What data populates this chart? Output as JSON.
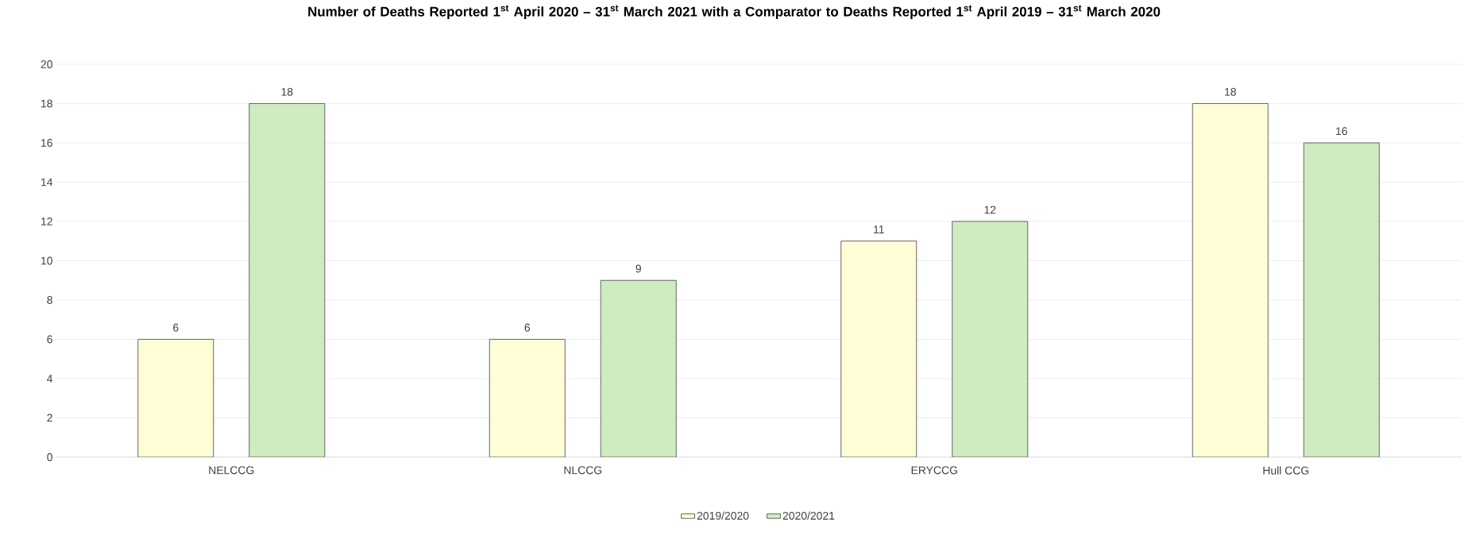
{
  "chart_data": {
    "type": "bar",
    "title": "Number of Deaths Reported 1$^{st}$ April 2020 – 31$^{st}$ March 2021 with a Comparator to Deaths Reported 1$^{st}$ April 2019 – 31$^{st}$ March 2020",
    "categories": [
      "NELCCG",
      "NLCCG",
      "ERYCCG",
      "Hull CCG"
    ],
    "series": [
      {
        "name": "2019/2020",
        "color": "#fffdd6",
        "values": [
          6,
          6,
          11,
          18
        ]
      },
      {
        "name": "2020/2021",
        "color": "#d1ebc0",
        "values": [
          18,
          9,
          12,
          16
        ]
      }
    ],
    "ylim": [
      0,
      20
    ],
    "yticks": [
      0,
      2,
      4,
      6,
      8,
      10,
      12,
      14,
      16,
      18,
      20
    ],
    "grid": "y",
    "legend": "bottom",
    "data_labels": true
  }
}
